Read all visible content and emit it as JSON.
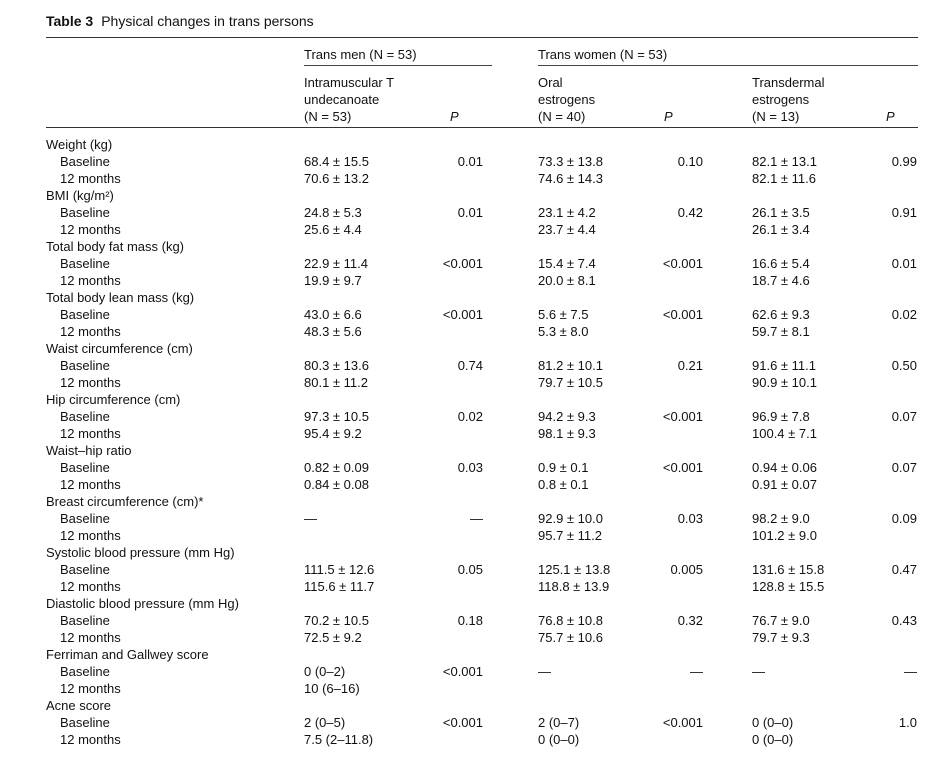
{
  "table": {
    "number": "Table 3",
    "caption": "Physical changes in trans persons",
    "groups": {
      "men": "Trans men (N = 53)",
      "women": "Trans women (N = 53)"
    },
    "columns": {
      "tm": [
        "Intramuscular T",
        "undecanoate",
        "(N = 53)"
      ],
      "oral": [
        "Oral",
        "estrogens",
        "(N = 40)"
      ],
      "td": [
        "Transdermal",
        "estrogens",
        "(N = 13)"
      ],
      "p": "P"
    },
    "sections": [
      {
        "label": "Weight (kg)",
        "rows": [
          {
            "label": "Baseline",
            "tm": "68.4 ± 15.5",
            "tm_p": "0.01",
            "or": "73.3 ± 13.8",
            "or_p": "0.10",
            "td": "82.1 ± 13.1",
            "td_p": "0.99"
          },
          {
            "label": "12 months",
            "tm": "70.6 ± 13.2",
            "or": "74.6 ± 14.3",
            "td": "82.1 ± 11.6"
          }
        ]
      },
      {
        "label": "BMI (kg/m²)",
        "rows": [
          {
            "label": "Baseline",
            "tm": "24.8 ± 5.3",
            "tm_p": "0.01",
            "or": "23.1 ± 4.2",
            "or_p": "0.42",
            "td": "26.1 ± 3.5",
            "td_p": "0.91"
          },
          {
            "label": "12 months",
            "tm": "25.6 ± 4.4",
            "or": "23.7 ± 4.4",
            "td": "26.1 ± 3.4"
          }
        ]
      },
      {
        "label": "Total body fat mass (kg)",
        "rows": [
          {
            "label": "Baseline",
            "tm": "22.9 ± 11.4",
            "tm_p": "<0.001",
            "or": "15.4 ± 7.4",
            "or_p": "<0.001",
            "td": "16.6 ± 5.4",
            "td_p": "0.01"
          },
          {
            "label": "12 months",
            "tm": "19.9 ± 9.7",
            "or": "20.0 ± 8.1",
            "td": "18.7 ± 4.6"
          }
        ]
      },
      {
        "label": "Total body lean mass (kg)",
        "rows": [
          {
            "label": "Baseline",
            "tm": "43.0 ± 6.6",
            "tm_p": "<0.001",
            "or": "5.6 ± 7.5",
            "or_p": "<0.001",
            "td": "62.6 ± 9.3",
            "td_p": "0.02"
          },
          {
            "label": "12 months",
            "tm": "48.3 ± 5.6",
            "or": "5.3 ± 8.0",
            "td": "59.7 ± 8.1"
          }
        ]
      },
      {
        "label": "Waist circumference (cm)",
        "rows": [
          {
            "label": "Baseline",
            "tm": "80.3 ± 13.6",
            "tm_p": "0.74",
            "or": "81.2 ± 10.1",
            "or_p": "0.21",
            "td": "91.6 ± 11.1",
            "td_p": "0.50"
          },
          {
            "label": "12 months",
            "tm": "80.1 ± 11.2",
            "or": "79.7 ± 10.5",
            "td": "90.9 ± 10.1"
          }
        ]
      },
      {
        "label": "Hip circumference (cm)",
        "rows": [
          {
            "label": "Baseline",
            "tm": "97.3 ± 10.5",
            "tm_p": "0.02",
            "or": "94.2 ± 9.3",
            "or_p": "<0.001",
            "td": "96.9 ± 7.8",
            "td_p": "0.07"
          },
          {
            "label": "12 months",
            "tm": "95.4 ± 9.2",
            "or": "98.1 ± 9.3",
            "td": "100.4 ± 7.1"
          }
        ]
      },
      {
        "label": "Waist–hip ratio",
        "rows": [
          {
            "label": "Baseline",
            "tm": " 0.82 ± 0.09",
            "tm_p": "0.03",
            "or": " 0.9 ± 0.1",
            "or_p": "<0.001",
            "td": " 0.94 ± 0.06",
            "td_p": "0.07"
          },
          {
            "label": "12 months",
            "tm": " 0.84 ± 0.08",
            "or": " 0.8 ± 0.1",
            "td": " 0.91 ± 0.07"
          }
        ]
      },
      {
        "label": "Breast circumference (cm)*",
        "rows": [
          {
            "label": "Baseline",
            "tm": "—",
            "tm_p": "—",
            "or": "92.9 ± 10.0",
            "or_p": "0.03",
            "td": "98.2 ± 9.0",
            "td_p": "0.09"
          },
          {
            "label": "12 months",
            "or": "95.7 ± 11.2",
            "td": "101.2 ± 9.0"
          }
        ]
      },
      {
        "label": "Systolic blood pressure (mm Hg)",
        "rows": [
          {
            "label": "Baseline",
            "tm": "111.5 ± 12.6",
            "tm_p": "0.05",
            "or": "125.1 ± 13.8",
            "or_p": "0.005",
            "td": "131.6 ± 15.8",
            "td_p": "0.47"
          },
          {
            "label": "12 months",
            "tm": "115.6 ± 11.7",
            "or": "118.8 ± 13.9",
            "td": "128.8 ± 15.5"
          }
        ]
      },
      {
        "label": "Diastolic blood pressure (mm Hg)",
        "rows": [
          {
            "label": "Baseline",
            "tm": "70.2 ± 10.5",
            "tm_p": "0.18",
            "or": "76.8 ± 10.8",
            "or_p": "0.32",
            "td": "76.7 ± 9.0",
            "td_p": "0.43"
          },
          {
            "label": "12 months",
            "tm": "72.5 ± 9.2",
            "or": "75.7 ± 10.6",
            "td": "79.7 ± 9.3"
          }
        ]
      },
      {
        "label": "Ferriman and Gallwey score",
        "rows": [
          {
            "label": "Baseline",
            "tm": "0 (0–2)",
            "tm_p": "<0.001",
            "or": "—",
            "or_p": "—",
            "td": "—",
            "td_p": "—"
          },
          {
            "label": "12 months",
            "tm": "10 (6–16)"
          }
        ]
      },
      {
        "label": "Acne score",
        "rows": [
          {
            "label": "Baseline",
            "tm": "2 (0–5)",
            "tm_p": "<0.001",
            "or": "2 (0–7)",
            "or_p": "<0.001",
            "td": "0 (0–0)",
            "td_p": "1.0"
          },
          {
            "label": "12 months",
            "tm": "7.5 (2–11.8)",
            "or": "0 (0–0)",
            "td": "0 (0–0)"
          }
        ]
      }
    ]
  }
}
